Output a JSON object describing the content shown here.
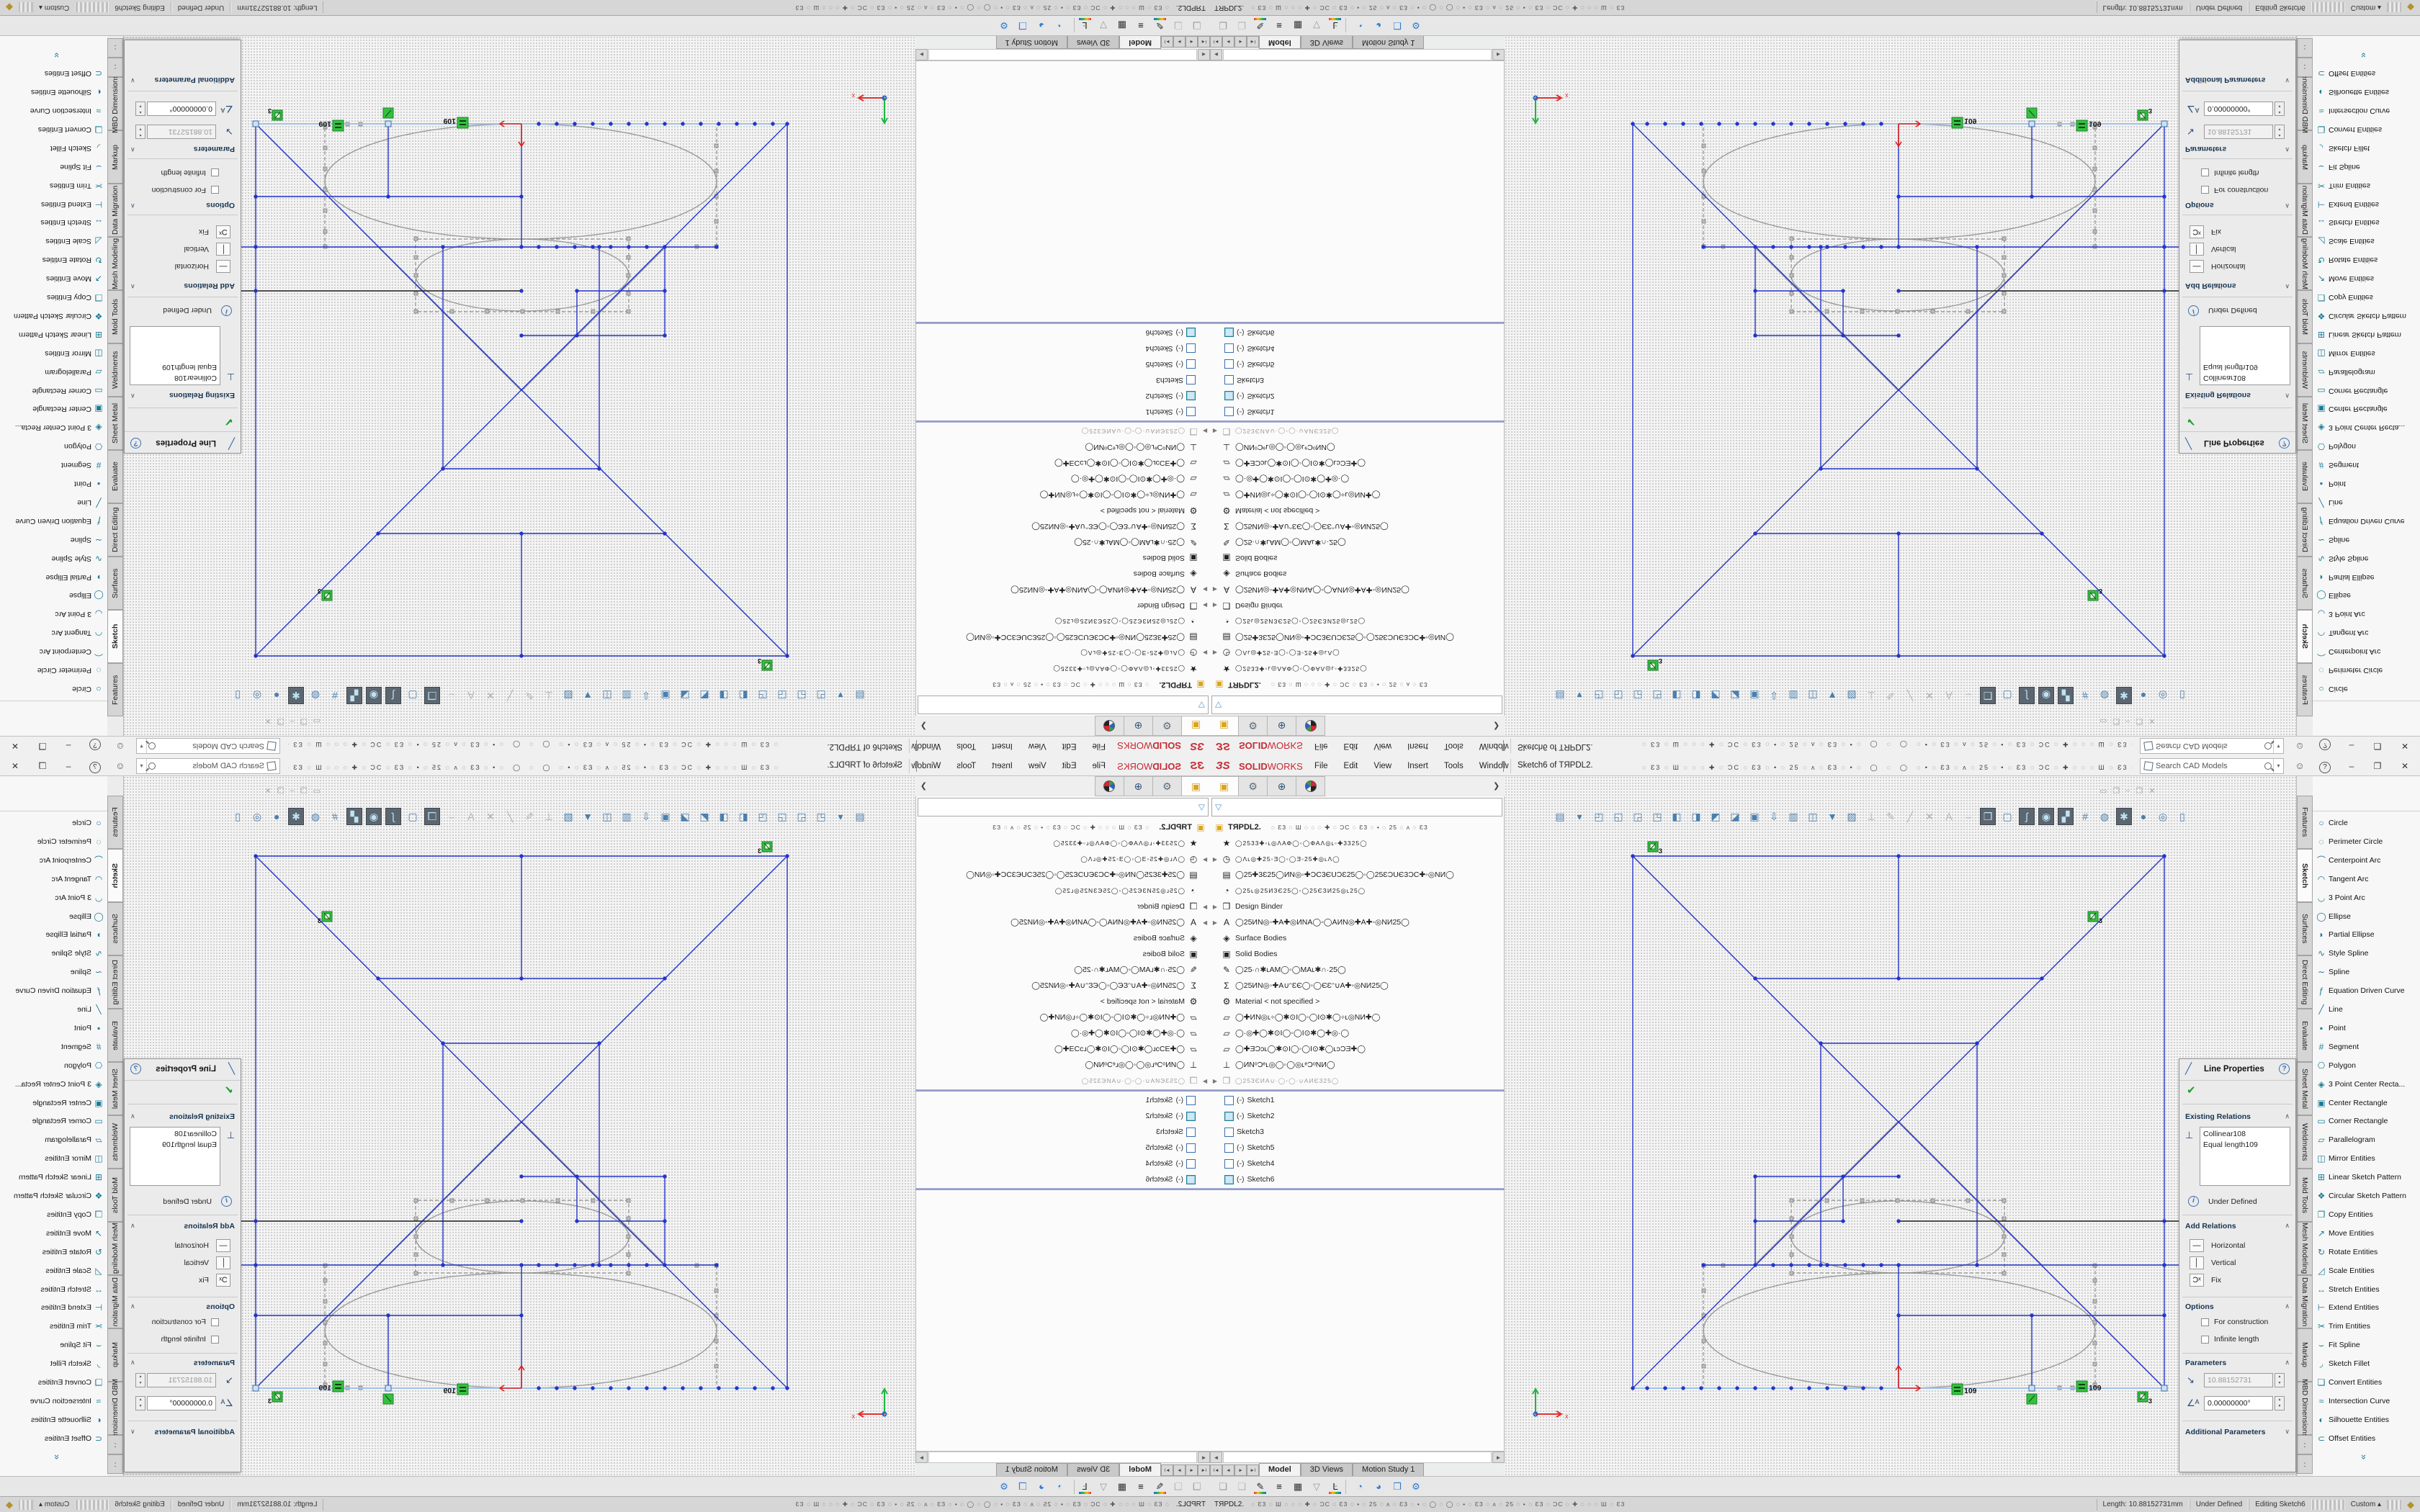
{
  "app": {
    "logo_ds": "ЗS",
    "brand_bold": "SOLID",
    "brand_light": "WORKS",
    "menus": [
      "File",
      "Edit",
      "View",
      "Insert",
      "Tools",
      "Window"
    ],
    "doc_title": "Sketch6 of TЯPDL2.",
    "qat_glyphs": "◌ Ɛ3 ◌ Ш ◌ ◌ ◌ ✚ ◌ ƆC ◌ Ɛ3 ◌ • ◌ 25 ◌ ʌ ◌ Ɛ3 ◌ • ◌　◯　◌　◯　◌ • ◌ Ɛ3 ◌ ʌ ◌ 25 ◌ • ◌ Ɛ3 ◌ ƆC ◌ ✚ ◌ ◌ ◌ Ш ◌ Ɛ3 ◌ ‥",
    "search_placeholder": "Search CAD Models",
    "search_dropdown": "▾",
    "window_min": "–",
    "window_restore": "❐",
    "window_close": "✕",
    "user_icon": "☺",
    "help_icon": "?"
  },
  "tree": {
    "filter_value": "",
    "root_label": "TЯPDL2.",
    "root_glyphs": "◌ Ɛ3 ◌ Ш ◌ ◌ ◌ ✚ ◌ ƆC ◌ Ɛ3 ◌ • ◌ 25 ◌ ʌ ◌ Ɛ3",
    "items": [
      {
        "arrow": "",
        "glyph": "★",
        "label": "◯2533✚◦ʟ◎ΛΑΦ◯◦◯ΦΑΛ◎ʟ◦✚3325◯"
      },
      {
        "arrow": "▶",
        "glyph": "◷",
        "label": "◯Ʌʟ◎✚25◦Ǝ◯◦◯Ǝ◦25✚◎ʟɅ◯"
      },
      {
        "arrow": "",
        "glyph": "▤",
        "label": "◯25✚3Ɛ25◯ИN◎◦✚ƆC3ЄUƆƐ25◯◦◯25ƐƆUЄ3ƆC✚◦◎NИ◯"
      },
      {
        "arrow": "",
        "glyph": "◔",
        "label": "◯25ʟ◎25ИЗЄ25◯◦◯25ЄЗИ25◎ʟ25◯"
      },
      {
        "arrow": "▶",
        "glyph": "❒",
        "label": "Design Binder"
      },
      {
        "arrow": "▶",
        "glyph": "A",
        "label": "◯25ИN◎◦✚A✚◎ИNΑ◯◦◯ΑИN◎✚A✚◦◎NИ25◯"
      },
      {
        "arrow": "",
        "glyph": "◈",
        "label": "Surface Bodies"
      },
      {
        "arrow": "",
        "glyph": "▣",
        "label": "Solid Bodies"
      },
      {
        "arrow": "",
        "glyph": "✎",
        "label": "◯25·∩✱ʟΑM◯◦◯MΑʟ✱∩·25◯"
      },
      {
        "arrow": "",
        "glyph": "Σ",
        "label": "◯25ИN◎◦✚Α∪ᵔƐЄ◯◦◯ЄƐᵔ∪Α✚◦◎NИ25◯"
      },
      {
        "arrow": "",
        "glyph": "⚙",
        "label": "Material  < not specified >"
      },
      {
        "arrow": "",
        "glyph": "▱",
        "label": "◯✚ИN◎ʟ÷◯✱⊙I◯◦◯I⊙✱◯÷ʟ◎NИ✚◯"
      },
      {
        "arrow": "",
        "glyph": "▱",
        "label": "◯·◎✚◯✱⊙I◯◦◯I⊙✱◯✚◎·◯"
      },
      {
        "arrow": "",
        "glyph": "▱",
        "label": "◯✚ƎƆɔʟ◯✱⊙I◯◦◯I⊙✱◯ʟɔƆƎ✚◯"
      },
      {
        "arrow": "",
        "glyph": "⊥",
        "label": "◯ИNᵒƆᵉʟ◎◯◦◯◎ʟᵉƆᵒNИ◯"
      },
      {
        "arrow": "▶",
        "glyph": "❒",
        "label": "◯253ЄИΑ∪·◯◦◯·∪ΑИЄ325◯",
        "gray": true
      }
    ],
    "sketches": [
      {
        "prefix": "(-)",
        "label": "Sketch1",
        "active": false
      },
      {
        "prefix": "(-)",
        "label": "Sketch2",
        "active": true
      },
      {
        "prefix": "",
        "label": "Sketch3",
        "active": false
      },
      {
        "prefix": "(-)",
        "label": "Sketch5",
        "active": false
      },
      {
        "prefix": "(-)",
        "label": "Sketch4",
        "active": false
      },
      {
        "prefix": "(-)",
        "label": "Sketch6",
        "active": true
      }
    ]
  },
  "graphics": {
    "view_toolbar": [
      {
        "g": "▤"
      },
      {
        "g": "▾"
      },
      {
        "g": "◰"
      },
      {
        "g": "◱"
      },
      {
        "g": "◲"
      },
      {
        "g": "◳"
      },
      {
        "g": "◧"
      },
      {
        "g": "◨"
      },
      {
        "g": "◩"
      },
      {
        "g": "◪"
      },
      {
        "g": "▣"
      },
      {
        "g": "⇩"
      },
      {
        "g": "▥"
      },
      {
        "g": "◫"
      },
      {
        "g": "▼"
      },
      {
        "g": "▨"
      },
      {
        "g": "⊥",
        "dis": true
      },
      {
        "g": "✎",
        "dis": true
      },
      {
        "g": "╱",
        "dis": true
      },
      {
        "g": "✕",
        "dis": true
      },
      {
        "g": "A",
        "dis": true
      },
      {
        "g": "⌣",
        "dis": true
      },
      {
        "g": "❒",
        "pr": true
      },
      {
        "g": "▢"
      },
      {
        "g": "∫",
        "pr": true
      },
      {
        "g": "◉",
        "pr": true
      },
      {
        "g": "▞",
        "pr": true
      },
      {
        "g": "#"
      },
      {
        "g": "◍"
      },
      {
        "g": "✱",
        "pr": true
      },
      {
        "g": "●"
      },
      {
        "g": "◎"
      },
      {
        "g": "▯"
      }
    ],
    "ghost_buttons": [
      "▭",
      "❐",
      "–",
      "❐",
      "✕"
    ],
    "badge_label": "3",
    "dim_label": "109",
    "triad_x_label": "x"
  },
  "panel": {
    "title": "Line Properties",
    "help": "?",
    "check": "✔",
    "existing_header": "Existing Relations",
    "relation_icon": "⊥",
    "relations": [
      "Collinear108",
      "Equal length109"
    ],
    "status_text": "Under Defined",
    "info_icon": "i",
    "add_header": "Add Relations",
    "add_buttons": [
      {
        "icon": "—",
        "label": "Horizontal"
      },
      {
        "icon": "│",
        "label": "Vertical"
      },
      {
        "icon": "Ɔˣ",
        "label": "Fix"
      }
    ],
    "options_header": "Options",
    "checkboxes": [
      "For construction",
      "Infinite length"
    ],
    "parameters_header": "Parameters",
    "length_icon": "↘",
    "length_value": "10.88152731",
    "angle_icon": "∠ᴬ",
    "angle_value": "0.00000000°",
    "additional_header": "Additional Parameters",
    "collapse_up": "∧",
    "collapse_down": "∨"
  },
  "command_tabs": [
    "Features",
    "Sketch",
    "Surfaces",
    "Direct Editing",
    "Evaluate",
    "Sheet Metal",
    "Weldments",
    "Mold Tools",
    "Mesh Modeling",
    "Data Migration",
    "Markup",
    "MBD Dimensions",
    ":",
    ":"
  ],
  "sketch_tools": {
    "items": [
      {
        "i": "○",
        "l": "Circle"
      },
      {
        "i": "◌",
        "l": "Perimeter Circle"
      },
      {
        "i": "⌒",
        "l": "Centerpoint Arc"
      },
      {
        "i": "◠",
        "l": "Tangent Arc"
      },
      {
        "i": "◡",
        "l": "3 Point Arc"
      },
      {
        "i": "◯",
        "l": "Ellipse"
      },
      {
        "i": "◗",
        "l": "Partial Ellipse"
      },
      {
        "i": "∿",
        "l": "Style Spline"
      },
      {
        "i": "∼",
        "l": "Spline"
      },
      {
        "i": "ƒ",
        "l": "Equation Driven Curve"
      },
      {
        "i": "╱",
        "l": "Line"
      },
      {
        "i": "▪",
        "l": "Point"
      },
      {
        "i": "#",
        "l": "Segment"
      },
      {
        "i": "⎔",
        "l": "Polygon"
      },
      {
        "i": "◈",
        "l": "3 Point Center Recta..."
      },
      {
        "i": "▣",
        "l": "Center Rectangle"
      },
      {
        "i": "▭",
        "l": "Corner Rectangle"
      },
      {
        "i": "▱",
        "l": "Parallelogram"
      },
      {
        "i": "◫",
        "l": "Mirror Entities"
      },
      {
        "i": "⊞",
        "l": "Linear Sketch Pattern"
      },
      {
        "i": "❖",
        "l": "Circular Sketch Pattern"
      },
      {
        "i": "❐",
        "l": "Copy Entities"
      },
      {
        "i": "↗",
        "l": "Move Entities"
      },
      {
        "i": "↻",
        "l": "Rotate Entities"
      },
      {
        "i": "◿",
        "l": "Scale Entities"
      },
      {
        "i": "↔",
        "l": "Stretch Entities"
      },
      {
        "i": "⊢",
        "l": "Extend Entities"
      },
      {
        "i": "✂",
        "l": "Trim Entities"
      },
      {
        "i": "⌣",
        "l": "Fit Spline"
      },
      {
        "i": "◞",
        "l": "Sketch Fillet"
      },
      {
        "i": "❏",
        "l": "Convert Entities"
      },
      {
        "i": "≈",
        "l": "Intersection Curve"
      },
      {
        "i": "◐",
        "l": "Silhouette Entities"
      },
      {
        "i": "⊂",
        "l": "Offset Entities"
      }
    ],
    "more": "«"
  },
  "mdi": {
    "nav": [
      "I◄",
      "◄",
      "►",
      "►I"
    ],
    "tabs": [
      "Model",
      "3D Views",
      "Motion Study 1"
    ],
    "active": "Model"
  },
  "quickbar": [
    {
      "g": "❏",
      "c": "#9a9a9a"
    },
    {
      "g": "❏",
      "c": "#b5b5b5"
    },
    {
      "g": "✎",
      "c": "#222",
      "rb": true
    },
    {
      "g": "≡",
      "c": "#111"
    },
    {
      "g": "▦",
      "c": "#333"
    },
    {
      "g": "▽",
      "c": "#9a9a9a"
    },
    {
      "g": "Ŀ",
      "c": "#222",
      "rb": true
    },
    {
      "g": "◔",
      "c": "#2e7dd1"
    },
    {
      "g": "◕",
      "c": "#2e7dd1"
    },
    {
      "g": "❒",
      "c": "#2e7dd1"
    },
    {
      "g": "⚙",
      "c": "#2e7dd1"
    }
  ],
  "status": {
    "doc": "TЯPDL2.",
    "glyphs": "◌ Ɛ3 ◌ Ш ◌ ◌ ◌ ✚ ◌ ƆC ◌ Ɛ3 ◌ • ◌ 25 ◌ ʌ ◌ Ɛ3 ◌ • ◌ ◯ ◌ ◯ ◌ • ◌ Ɛ3 ◌ ʌ ◌ 25 ◌ • ◌ Ɛ3 ◌ ƆC ◌ ✚ ◌ ◌ ◌ Ш ◌ Ɛ3",
    "length": "Length: 10.88152731mm",
    "state": "Under Defined",
    "editing": "Editing Sketch6",
    "units": "Custom",
    "units_arrow": "▴",
    "tag_icon": "◆"
  }
}
